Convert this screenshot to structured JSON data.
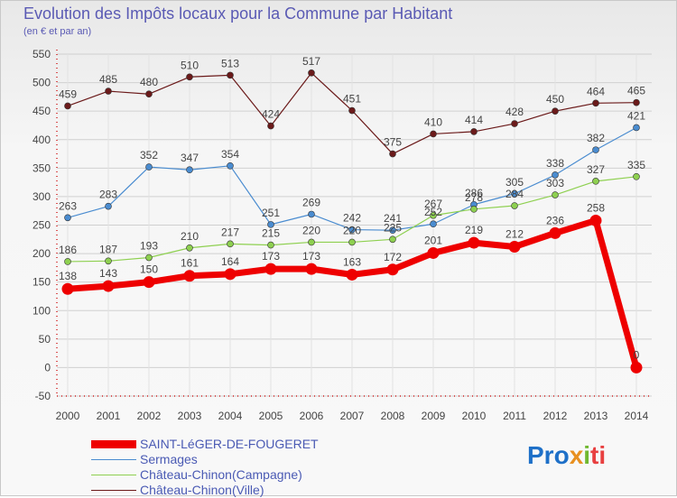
{
  "chart_data": {
    "type": "line",
    "title": "Evolution des Impôts locaux pour la Commune par Habitant",
    "subtitle": "(en € et par an)",
    "xlabel": "",
    "ylabel": "",
    "ylim": [
      -50,
      550
    ],
    "y_ticks": [
      "550",
      "500",
      "450",
      "400",
      "350",
      "300",
      "250",
      "200",
      "150",
      "100",
      "50",
      "0",
      "-50"
    ],
    "x": [
      "2000",
      "2001",
      "2002",
      "2003",
      "2004",
      "2005",
      "2006",
      "2007",
      "2008",
      "2009",
      "2010",
      "2011",
      "2012",
      "2013",
      "2014"
    ],
    "grid": true,
    "series": [
      {
        "name": "Château-Chinon(Ville)",
        "color": "#6b1a1a",
        "values": [
          459,
          485,
          480,
          510,
          513,
          424,
          517,
          451,
          375,
          410,
          414,
          428,
          450,
          464,
          465
        ],
        "labels": [
          "459",
          "485",
          "480",
          "510",
          "513",
          "424",
          "517",
          "451",
          "375",
          "410",
          "414",
          "428",
          "450",
          "464",
          "465"
        ]
      },
      {
        "name": "Sermages",
        "color": "#4a8cd0",
        "values": [
          263,
          283,
          352,
          347,
          354,
          251,
          269,
          242,
          241,
          252,
          286,
          305,
          338,
          382,
          421
        ],
        "labels": [
          "263",
          "283",
          "352",
          "347",
          "354",
          "251",
          "269",
          "242",
          "241",
          "252",
          "286",
          "305",
          "338",
          "382",
          "421"
        ]
      },
      {
        "name": "Château-Chinon(Campagne)",
        "color": "#8ed050",
        "values": [
          186,
          187,
          193,
          210,
          217,
          215,
          220,
          220,
          225,
          267,
          278,
          284,
          303,
          327,
          335
        ],
        "labels": [
          "186",
          "187",
          "193",
          "210",
          "217",
          "215",
          "220",
          "220",
          "225",
          "267",
          "278",
          "284",
          "303",
          "327",
          "335"
        ]
      },
      {
        "name": "SAINT-LéGER-DE-FOUGERET",
        "color": "#ee0000",
        "values": [
          138,
          143,
          150,
          161,
          164,
          173,
          173,
          163,
          172,
          201,
          219,
          212,
          236,
          258,
          0
        ],
        "labels": [
          "138",
          "143",
          "150",
          "161",
          "164",
          "173",
          "173",
          "163",
          "172",
          "201",
          "219",
          "212",
          "236",
          "258",
          "0"
        ]
      }
    ]
  },
  "legend": {
    "items": [
      {
        "label": "SAINT-LéGER-DE-FOUGERET",
        "color": "#ee0000"
      },
      {
        "label": "Sermages",
        "color": "#4a8cd0"
      },
      {
        "label": "Château-Chinon(Campagne)",
        "color": "#8ed050"
      },
      {
        "label": "Château-Chinon(Ville)",
        "color": "#6b1a1a"
      }
    ]
  },
  "brand": {
    "logo_letters": [
      "Pro",
      "x",
      "i",
      "ti"
    ]
  }
}
